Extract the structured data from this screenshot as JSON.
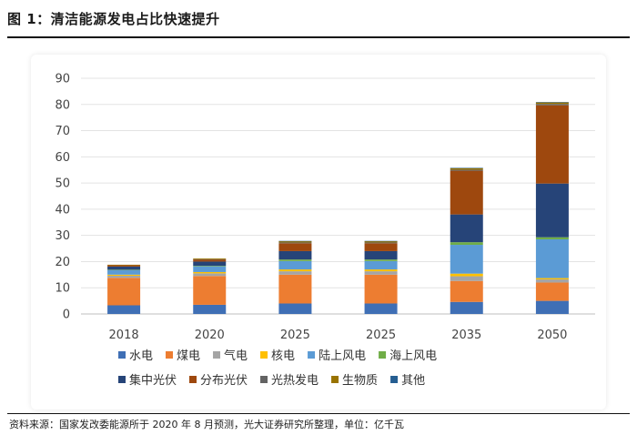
{
  "figure_title": "图 1：清洁能源发电占比快速提升",
  "source_note": "资料来源：国家发改委能源所于 2020 年 8 月预测，光大证券研究所整理，单位：亿千瓦",
  "chart_data": {
    "type": "bar",
    "stacked": true,
    "title": "",
    "xlabel": "",
    "ylabel": "",
    "ylim": [
      0,
      90
    ],
    "yticks": [
      0,
      10,
      20,
      30,
      40,
      50,
      60,
      70,
      80,
      90
    ],
    "categories": [
      "2018",
      "2020",
      "2025",
      "2025",
      "2035",
      "2050"
    ],
    "series": [
      {
        "name": "水电",
        "color": "#3f6fb5",
        "values": [
          3.3,
          3.5,
          4.0,
          4.0,
          4.6,
          5.0
        ]
      },
      {
        "name": "煤电",
        "color": "#ed7d31",
        "values": [
          10.5,
          11.0,
          11.0,
          11.0,
          8.0,
          7.0
        ]
      },
      {
        "name": "气电",
        "color": "#a5a5a5",
        "values": [
          0.8,
          1.0,
          1.3,
          1.3,
          1.8,
          1.2
        ]
      },
      {
        "name": "核电",
        "color": "#ffc000",
        "values": [
          0.4,
          0.5,
          0.7,
          0.7,
          1.0,
          0.5
        ]
      },
      {
        "name": "陆上风电",
        "color": "#5b9bd5",
        "values": [
          1.8,
          2.2,
          3.2,
          3.2,
          11.0,
          14.8
        ]
      },
      {
        "name": "海上风电",
        "color": "#70ad47",
        "values": [
          0.1,
          0.2,
          0.6,
          0.6,
          1.0,
          0.8
        ]
      },
      {
        "name": "集中光伏",
        "color": "#264478",
        "values": [
          1.2,
          1.6,
          3.2,
          3.2,
          10.6,
          20.5
        ]
      },
      {
        "name": "分布光伏",
        "color": "#9e480e",
        "values": [
          0.5,
          0.8,
          3.0,
          3.0,
          16.7,
          29.9
        ]
      },
      {
        "name": "光热发电",
        "color": "#636363",
        "values": [
          0.0,
          0.1,
          0.3,
          0.3,
          0.4,
          0.5
        ]
      },
      {
        "name": "生物质",
        "color": "#997300",
        "values": [
          0.2,
          0.3,
          0.5,
          0.5,
          0.6,
          0.6
        ]
      },
      {
        "name": "其他",
        "color": "#255e91",
        "values": [
          0.0,
          0.0,
          0.1,
          0.1,
          0.1,
          0.1
        ]
      }
    ],
    "legend_position": "bottom",
    "grid": true
  }
}
